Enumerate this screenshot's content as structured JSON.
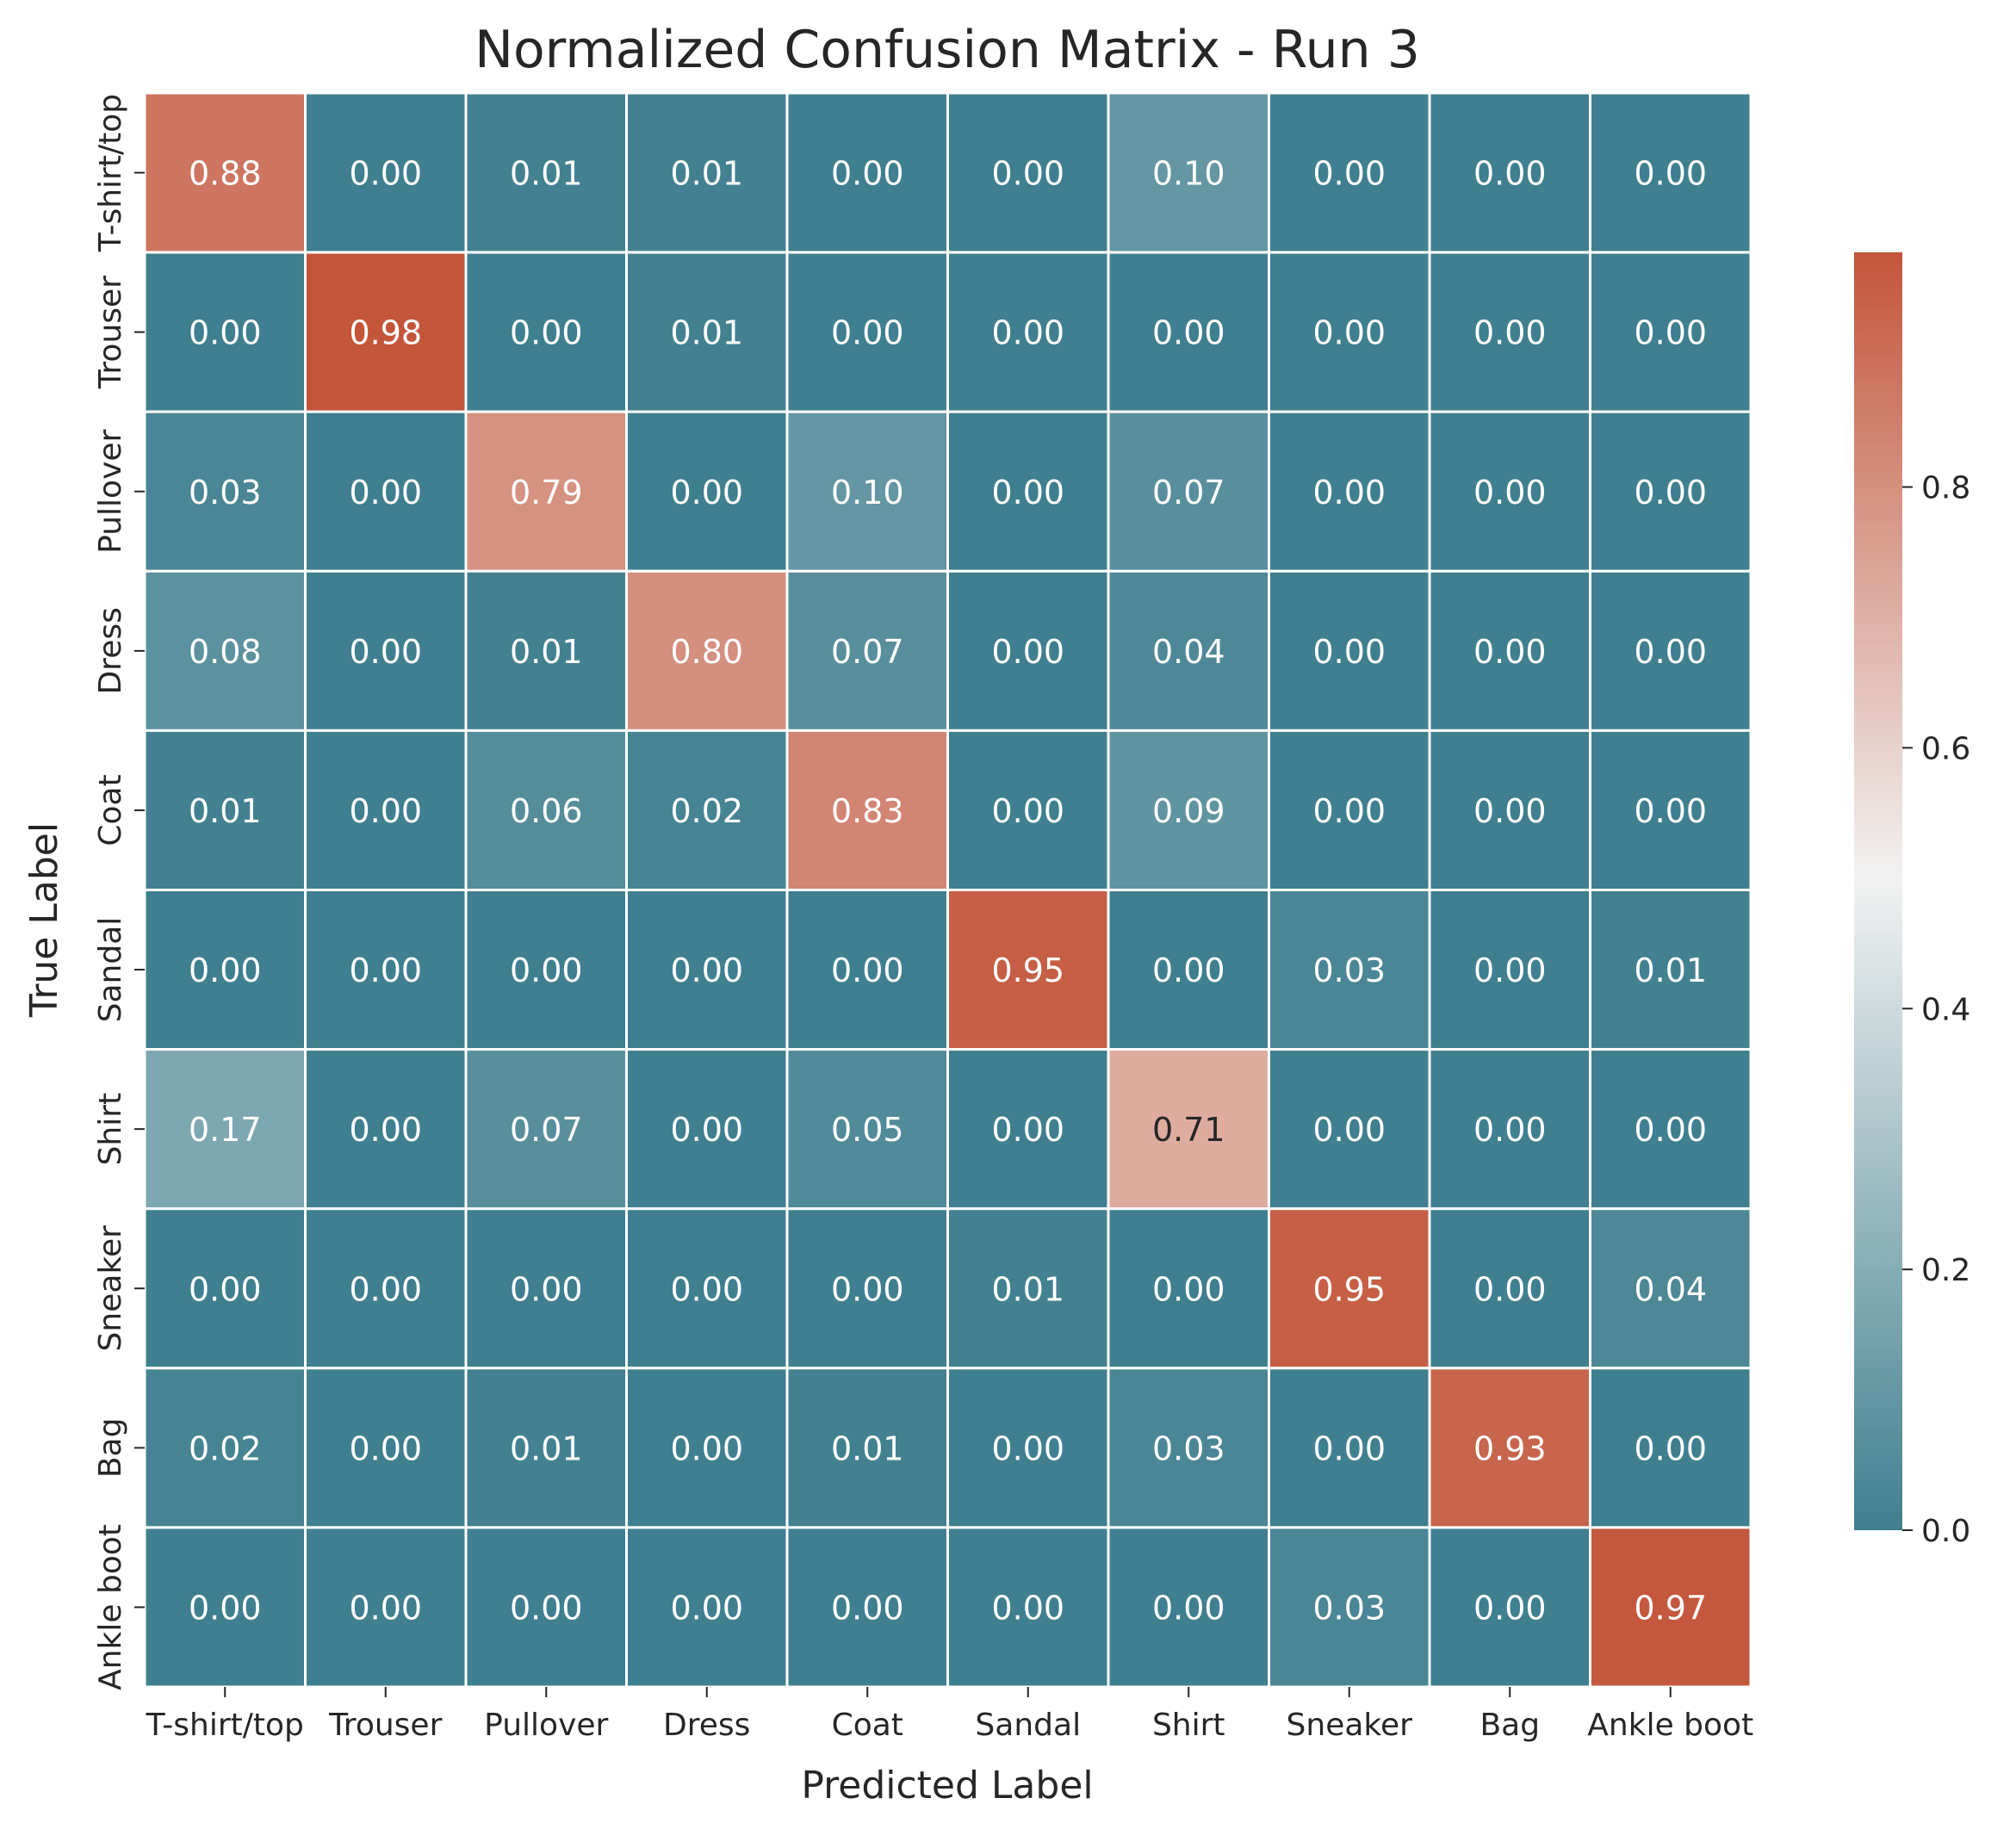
{
  "chart_data": {
    "type": "heatmap",
    "title": "Normalized Confusion Matrix - Run 3",
    "xlabel": "Predicted Label",
    "ylabel": "True Label",
    "x_categories": [
      "T-shirt/top",
      "Trouser",
      "Pullover",
      "Dress",
      "Coat",
      "Sandal",
      "Shirt",
      "Sneaker",
      "Bag",
      "Ankle boot"
    ],
    "y_categories": [
      "T-shirt/top",
      "Trouser",
      "Pullover",
      "Dress",
      "Coat",
      "Sandal",
      "Shirt",
      "Sneaker",
      "Bag",
      "Ankle boot"
    ],
    "values": [
      [
        0.88,
        0.0,
        0.01,
        0.01,
        0.0,
        0.0,
        0.1,
        0.0,
        0.0,
        0.0
      ],
      [
        0.0,
        0.98,
        0.0,
        0.01,
        0.0,
        0.0,
        0.0,
        0.0,
        0.0,
        0.0
      ],
      [
        0.03,
        0.0,
        0.79,
        0.0,
        0.1,
        0.0,
        0.07,
        0.0,
        0.0,
        0.0
      ],
      [
        0.08,
        0.0,
        0.01,
        0.8,
        0.07,
        0.0,
        0.04,
        0.0,
        0.0,
        0.0
      ],
      [
        0.01,
        0.0,
        0.06,
        0.02,
        0.83,
        0.0,
        0.09,
        0.0,
        0.0,
        0.0
      ],
      [
        0.0,
        0.0,
        0.0,
        0.0,
        0.0,
        0.95,
        0.0,
        0.03,
        0.0,
        0.01
      ],
      [
        0.17,
        0.0,
        0.07,
        0.0,
        0.05,
        0.0,
        0.71,
        0.0,
        0.0,
        0.0
      ],
      [
        0.0,
        0.0,
        0.0,
        0.0,
        0.0,
        0.01,
        0.0,
        0.95,
        0.0,
        0.04
      ],
      [
        0.02,
        0.0,
        0.01,
        0.0,
        0.01,
        0.0,
        0.03,
        0.0,
        0.93,
        0.0
      ],
      [
        0.0,
        0.0,
        0.0,
        0.0,
        0.0,
        0.0,
        0.0,
        0.03,
        0.0,
        0.97
      ]
    ],
    "value_range": [
      0.0,
      0.98
    ],
    "colorbar": {
      "ticks": [
        0.0,
        0.2,
        0.4,
        0.6,
        0.8
      ],
      "tick_labels": [
        "0.0",
        "0.2",
        "0.4",
        "0.6",
        "0.8"
      ]
    },
    "colors": {
      "low": "#3f7f8f",
      "mid": "#f2f2f2",
      "high": "#c3553a",
      "cell_border": "#ffffff",
      "text_light": "#ffffff",
      "text_dark": "#262626"
    }
  }
}
